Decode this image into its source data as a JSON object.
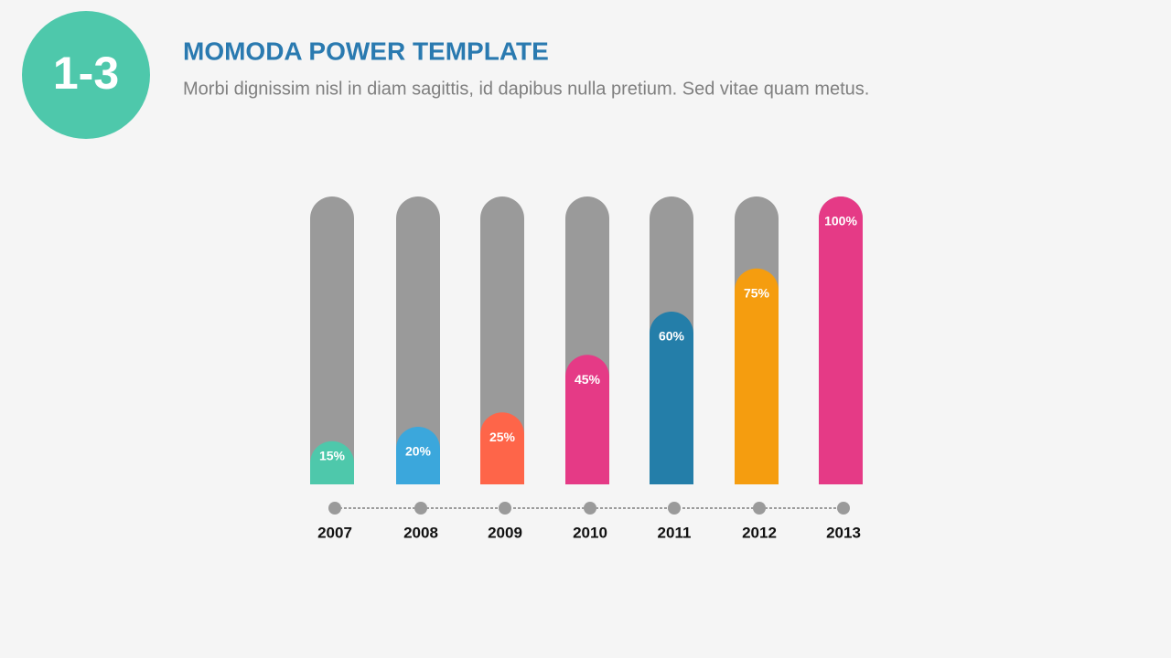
{
  "header": {
    "badge": "1-3",
    "title": "MOMODA POWER TEMPLATE",
    "subtitle": "Morbi dignissim nisl in diam sagittis, id dapibus nulla pretium. Sed vitae quam metus."
  },
  "chart_data": {
    "type": "bar",
    "categories": [
      "2007",
      "2008",
      "2009",
      "2010",
      "2011",
      "2012",
      "2013"
    ],
    "values": [
      15,
      20,
      25,
      45,
      60,
      75,
      100
    ],
    "value_labels": [
      "15%",
      "20%",
      "25%",
      "45%",
      "60%",
      "75%",
      "100%"
    ],
    "colors": [
      "#4ec8ab",
      "#3ba7dc",
      "#fe6549",
      "#e53a86",
      "#247ea9",
      "#f59d0f",
      "#e53a86"
    ],
    "track_color": "#9a9a9a",
    "ylim": [
      0,
      100
    ]
  }
}
